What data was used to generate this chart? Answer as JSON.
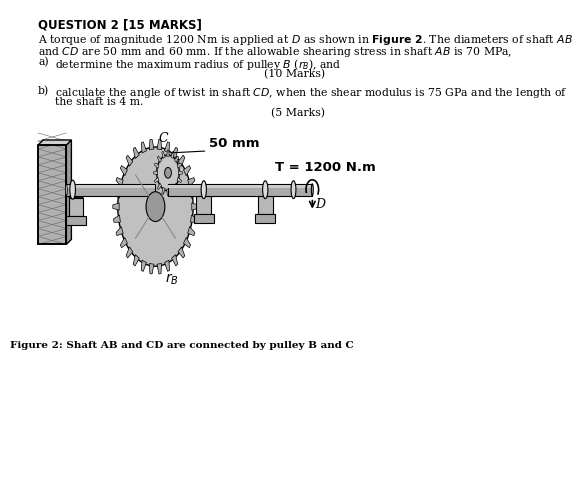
{
  "title": "QUESTION 2 [15 MARKS]",
  "line1": "A torque of magnitude 1200 Nm is applied at $D$ as shown in {\\bf Figure 2}. The diameters of shaft $AB$",
  "line2": "and $CD$ are 50 mm and 60 mm. If the allowable shearing stress in shaft $AB$ is 70 MPa,",
  "qa_label": "a)",
  "qa_text": "determine the maximum radius of pulley $B$ ($\\mathit{r_B}$), and",
  "qa_marks": "(10 Marks)",
  "qb_label": "b)",
  "qb_line1": "calculate the angle of twist in shaft $CD$, when the shear modulus is 75 GPa and the length of",
  "qb_line2": "the shaft is 4 m.",
  "qb_marks": "(5 Marks)",
  "label_50mm": "50 mm",
  "label_T": "T = 1200 N.m",
  "label_C": "C",
  "label_D": "D",
  "label_rB": "$r_B$",
  "fig_caption": "Figure 2: Shaft AB and CD are connected by pulley B and C",
  "bg_color": "#ffffff",
  "text_color": "#000000",
  "gray1": "#aaaaaa",
  "gray2": "#888888",
  "gray3": "#cccccc",
  "dark": "#333333",
  "text_indent": 8,
  "qa_indent": 35,
  "font_main": 7.8,
  "font_title": 8.5
}
